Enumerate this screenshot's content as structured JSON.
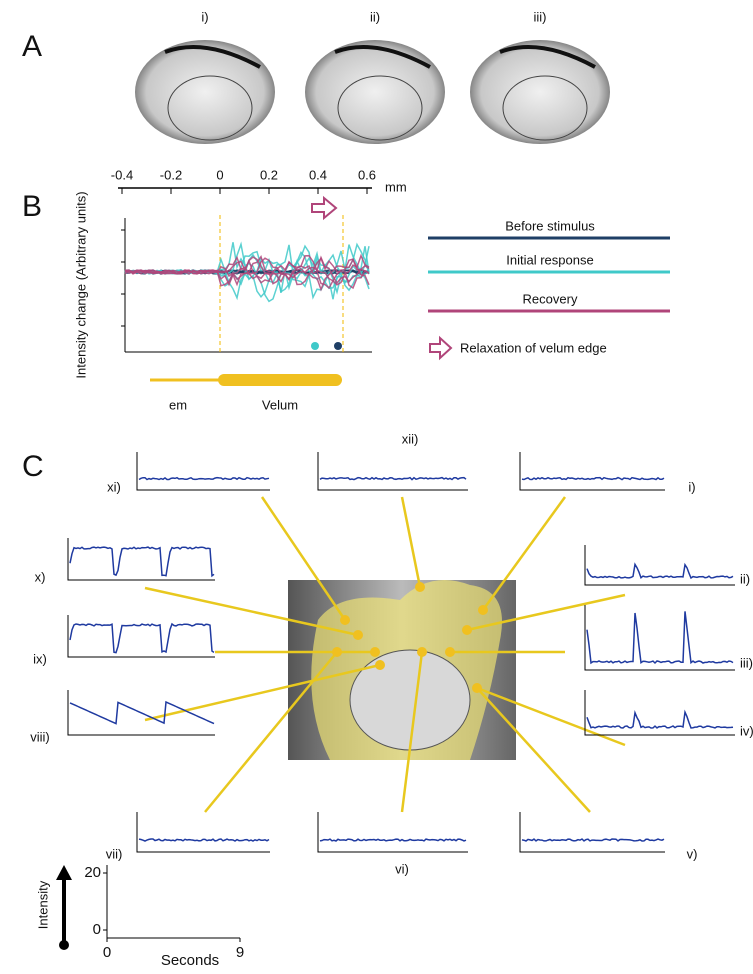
{
  "panel_a": {
    "label": "A",
    "images": [
      "i)",
      "ii)",
      "iii)"
    ]
  },
  "panel_b": {
    "label": "B",
    "axis": {
      "ticks": [
        -0.4,
        -0.2,
        0,
        0.2,
        0.4,
        0.6
      ],
      "unit": "mm"
    },
    "y_label": "Intensity change (Arbitrary units)",
    "regions": [
      "em",
      "Velum"
    ],
    "legend": [
      {
        "name": "Before stimulus",
        "color": "#1f3f66"
      },
      {
        "name": "Initial response",
        "color": "#3fc9c9"
      },
      {
        "name": "Recovery",
        "color": "#b0457a"
      },
      {
        "name": "Relaxation of velum edge",
        "color": "#b0457a"
      }
    ]
  },
  "panel_c": {
    "label": "C",
    "plots": [
      "xii)",
      "xi)",
      "i)",
      "x)",
      "ii)",
      "ix)",
      "iii)",
      "viii)",
      "iv)",
      "vii)",
      "vi)",
      "v)"
    ],
    "scale": {
      "y_label": "Intensity",
      "y_ticks": [
        0,
        20
      ],
      "x_label": "Seconds",
      "x_ticks": [
        0,
        9
      ]
    }
  }
}
